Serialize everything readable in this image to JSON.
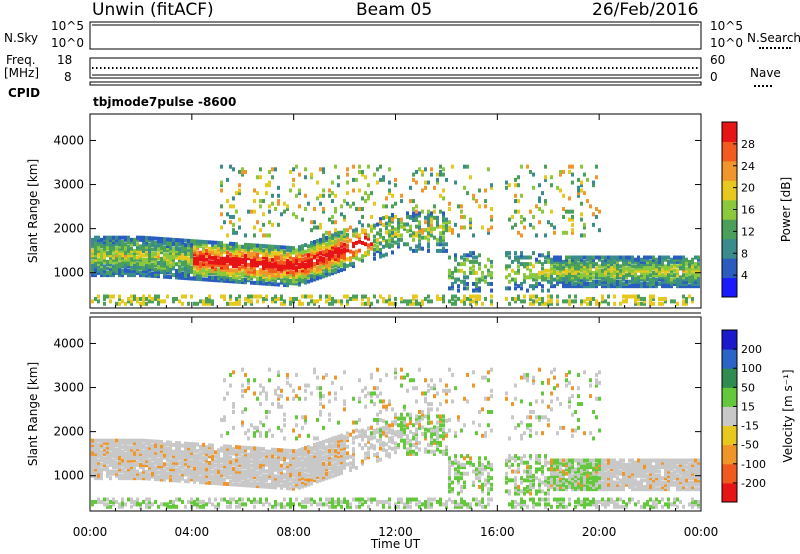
{
  "header": {
    "station": "Unwin (fitACF)",
    "beam": "Beam 05",
    "date": "26/Feb/2016"
  },
  "nsky_panel": {
    "label": "N.Sky",
    "ticks_left": [
      "10^5",
      "10^0"
    ],
    "ticks_right": [
      "10^5",
      "10^0"
    ],
    "right_label": "N.Search"
  },
  "freq_panel": {
    "label_line1": "Freq.",
    "label_line2": "[MHz]",
    "ticks_left": [
      "18",
      "8"
    ],
    "ticks_right": [
      "60",
      "0"
    ],
    "right_label": "Nave"
  },
  "cpid": {
    "label": "CPID",
    "value": "tbjmode7pulse -8600"
  },
  "chart_data": [
    {
      "type": "heatmap",
      "quantity": "Power",
      "ylabel": "Slant Range [km]",
      "y_ticks": [
        1000,
        2000,
        3000,
        4000
      ],
      "ylim": [
        200,
        4600
      ],
      "x_ticks": [
        "00:00",
        "04:00",
        "08:00",
        "12:00",
        "16:00",
        "20:00",
        "00:00"
      ],
      "xlim_hours": [
        0,
        24
      ],
      "colorbar": {
        "label": "Power [dB]",
        "ticks": [
          4,
          8,
          12,
          16,
          20,
          24,
          28
        ],
        "range": [
          0,
          32
        ],
        "colors": [
          "#1a1aff",
          "#2a5cc0",
          "#3a8c8c",
          "#4aa05a",
          "#8cc83c",
          "#e6c81e",
          "#f0962a",
          "#f25a1e",
          "#e61414"
        ]
      }
    },
    {
      "type": "heatmap",
      "quantity": "Velocity",
      "ylabel": "Slant Range [km]",
      "y_ticks": [
        1000,
        2000,
        3000,
        4000
      ],
      "ylim": [
        200,
        4600
      ],
      "x_ticks": [
        "00:00",
        "04:00",
        "08:00",
        "12:00",
        "16:00",
        "20:00",
        "00:00"
      ],
      "xlim_hours": [
        0,
        24
      ],
      "xlabel": "Time UT",
      "colorbar": {
        "label": "Velocity [m s⁻¹]",
        "ticks": [
          200,
          100,
          50,
          15,
          -15,
          -50,
          -100,
          -200
        ],
        "colors": [
          "#1a1acc",
          "#2a64c8",
          "#2e8c50",
          "#64c83c",
          "#c8c8c8",
          "#e6c81e",
          "#f09628",
          "#f05a1e",
          "#e61414"
        ]
      }
    }
  ]
}
